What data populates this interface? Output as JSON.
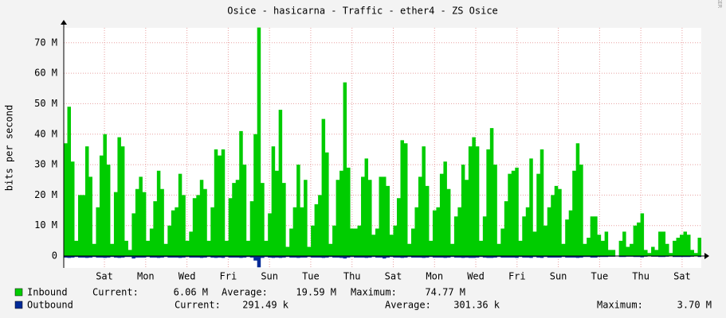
{
  "chart_data": {
    "type": "area",
    "title": "Osice - hasicarna - Traffic - ether4 - ZS Osice",
    "y_label": "bits per second",
    "watermark": "RRDTOOL / TOBI OETIKER",
    "step": true,
    "grid": true,
    "x": [
      0,
      250,
      500,
      750,
      1000,
      1250,
      1500,
      1750,
      2000,
      2250,
      2500,
      2750,
      3000,
      3250,
      3500,
      3750,
      4000,
      4250,
      4500,
      4750,
      5000,
      5250,
      5500,
      5750,
      6000,
      6250,
      6500,
      6750,
      7000,
      7250,
      7500,
      7750,
      8000,
      8250,
      8500,
      8750,
      9000,
      9250,
      9500,
      9750,
      10000,
      10250,
      10500,
      10750,
      11000,
      11250,
      11500,
      11750,
      12000,
      12250,
      12500,
      12750,
      13000,
      13250,
      13500,
      13750,
      14000,
      14250,
      14500,
      14750,
      15000,
      15250,
      15500,
      15750,
      16000,
      16250,
      16500,
      16750,
      17000,
      17250,
      17500,
      17750,
      18000,
      18250,
      18500,
      18750,
      19000,
      19250,
      19500,
      19750,
      20000,
      20250,
      20500,
      20750,
      21000,
      21250,
      21500,
      21750,
      22000,
      22250,
      22500,
      22750,
      23000,
      23250,
      23500,
      23750,
      24000,
      24250,
      24500,
      24750,
      25000,
      25250,
      25500,
      25750,
      26000,
      26250,
      26500,
      26750,
      27000,
      27250,
      27500,
      27750,
      28000,
      28250,
      28500,
      28750,
      29000,
      29250,
      29500,
      29750,
      30000,
      30250,
      30500,
      30750,
      31000,
      31250,
      31500,
      31750,
      32000,
      32250,
      32500,
      32750,
      33000,
      33250,
      33500,
      33750,
      34000,
      34250,
      34500,
      34750,
      35000,
      35250,
      35500,
      35750,
      36000,
      36250,
      36500,
      36750,
      37000,
      37250,
      37500,
      37750,
      38000,
      38250,
      38500,
      38750,
      39000,
      39250,
      39500,
      39750,
      40000,
      40250,
      40500,
      40750,
      41000,
      41250,
      41500,
      41750,
      42000,
      42250,
      42500,
      42750,
      43000,
      43250,
      43500,
      43750,
      44000,
      44250
    ],
    "xlim": [
      0,
      44500
    ],
    "xticks": [
      {
        "value": 2840,
        "label": "Sat"
      },
      {
        "value": 5720,
        "label": "Mon"
      },
      {
        "value": 8600,
        "label": "Wed"
      },
      {
        "value": 11480,
        "label": "Fri"
      },
      {
        "value": 14360,
        "label": "Sun"
      },
      {
        "value": 17240,
        "label": "Tue"
      },
      {
        "value": 20120,
        "label": "Thu"
      },
      {
        "value": 23000,
        "label": "Sat"
      },
      {
        "value": 25880,
        "label": "Mon"
      },
      {
        "value": 28760,
        "label": "Wed"
      },
      {
        "value": 31640,
        "label": "Fri"
      },
      {
        "value": 34520,
        "label": "Sun"
      },
      {
        "value": 37400,
        "label": "Tue"
      },
      {
        "value": 40280,
        "label": "Thu"
      },
      {
        "value": 43160,
        "label": "Sat"
      }
    ],
    "ylim": [
      -3.9,
      74.9
    ],
    "yticks": [
      0,
      {
        "value": 10,
        "label": "10 M"
      },
      {
        "value": 20,
        "label": "20 M"
      },
      {
        "value": 30,
        "label": "30 M"
      },
      {
        "value": 40,
        "label": "40 M"
      },
      {
        "value": 50,
        "label": "50 M"
      },
      {
        "value": 60,
        "label": "60 M"
      },
      {
        "value": 70,
        "label": "70 M"
      }
    ],
    "series": [
      {
        "name": "Inbound",
        "color": "#00cc00",
        "mirrored": false,
        "values": [
          37,
          49,
          31,
          5,
          20,
          20,
          36,
          26,
          4,
          16,
          33,
          40,
          30,
          4,
          21,
          39,
          36,
          5,
          2,
          14,
          22,
          26,
          21,
          5,
          9,
          18,
          28,
          22,
          4,
          10,
          15,
          16,
          27,
          20,
          5,
          8,
          19,
          20,
          25,
          22,
          5,
          16,
          35,
          33,
          35,
          5,
          19,
          24,
          25,
          41,
          30,
          5,
          18,
          40,
          75,
          24,
          5,
          14,
          36,
          28,
          48,
          24,
          3,
          9,
          16,
          30,
          16,
          25,
          3,
          10,
          17,
          20,
          45,
          34,
          4,
          10,
          25,
          28,
          57,
          29,
          9,
          9,
          10,
          26,
          32,
          25,
          7,
          9,
          26,
          26,
          23,
          7,
          10,
          19,
          38,
          37,
          4,
          9,
          16,
          26,
          36,
          23,
          5,
          15,
          16,
          27,
          31,
          22,
          4,
          13,
          16,
          30,
          25,
          36,
          39,
          36,
          5,
          13,
          35,
          42,
          30,
          4,
          9,
          18,
          27,
          28,
          29,
          5,
          13,
          16,
          32,
          8,
          27,
          35,
          10,
          16,
          20,
          23,
          22,
          4,
          12,
          15,
          28,
          37,
          30,
          4,
          6,
          13,
          13,
          7,
          5,
          8,
          2,
          2,
          0,
          5,
          8,
          3,
          4,
          10,
          11,
          14,
          2,
          1,
          3,
          2,
          8,
          8,
          4,
          1,
          5,
          6,
          7,
          8,
          7,
          2,
          1,
          6
        ],
        "stats": [
          {
            "label": "Current:",
            "value": "6.06 M"
          },
          {
            "label": "Average:",
            "value": "19.59 M"
          },
          {
            "label": "Maximum:",
            "value": "74.77 M"
          }
        ]
      },
      {
        "name": "Outbound",
        "color": "#002a97",
        "mirrored": true,
        "values": [
          0.5,
          0.6,
          0.5,
          0.3,
          0.5,
          0.5,
          0.6,
          0.5,
          0.3,
          0.5,
          0.5,
          0.6,
          0.5,
          0.3,
          0.5,
          0.6,
          0.5,
          0.3,
          0.3,
          0.8,
          0.5,
          0.5,
          0.5,
          0.3,
          0.5,
          0.5,
          0.6,
          0.5,
          0.3,
          0.5,
          0.5,
          0.5,
          0.6,
          0.5,
          0.3,
          0.5,
          0.5,
          0.5,
          0.6,
          0.5,
          0.3,
          0.5,
          0.6,
          0.5,
          0.6,
          0.3,
          0.5,
          0.5,
          0.5,
          0.6,
          0.5,
          0.3,
          0.5,
          1.5,
          3.7,
          0.6,
          0.3,
          0.5,
          0.6,
          0.5,
          0.6,
          0.5,
          0.3,
          0.5,
          0.5,
          0.6,
          0.5,
          0.5,
          0.3,
          0.5,
          0.5,
          0.5,
          0.6,
          0.5,
          0.3,
          0.5,
          0.5,
          0.6,
          0.8,
          0.5,
          0.3,
          0.5,
          0.5,
          0.5,
          0.6,
          0.5,
          0.3,
          0.5,
          0.5,
          0.8,
          0.5,
          0.3,
          0.5,
          0.5,
          0.6,
          0.5,
          0.3,
          0.5,
          0.5,
          0.5,
          0.6,
          0.5,
          0.3,
          0.5,
          0.5,
          0.5,
          0.6,
          0.5,
          0.3,
          0.5,
          0.5,
          0.6,
          0.5,
          0.6,
          0.6,
          0.5,
          0.3,
          0.5,
          0.6,
          0.6,
          0.5,
          0.3,
          0.5,
          0.5,
          0.5,
          0.5,
          0.6,
          0.3,
          0.5,
          0.5,
          0.6,
          0.3,
          0.5,
          0.6,
          0.3,
          0.5,
          0.5,
          0.5,
          0.5,
          0.3,
          0.5,
          0.5,
          0.5,
          0.6,
          0.5,
          0.3,
          0.3,
          0.5,
          0.5,
          0.3,
          0.3,
          0.3,
          0.2,
          0.2,
          0.1,
          0.3,
          0.3,
          0.2,
          0.2,
          0.3,
          0.3,
          0.4,
          0.2,
          0.1,
          0.2,
          0.2,
          0.3,
          0.3,
          0.2,
          0.1,
          0.3,
          0.3,
          0.3,
          0.3,
          0.3,
          0.2,
          0.1,
          0.3
        ],
        "stats": [
          {
            "label": "Current:",
            "value": "291.49 k"
          },
          {
            "label": "Average:",
            "value": "301.36 k"
          },
          {
            "label": "Maximum:",
            "value": "3.70 M"
          }
        ]
      }
    ]
  }
}
